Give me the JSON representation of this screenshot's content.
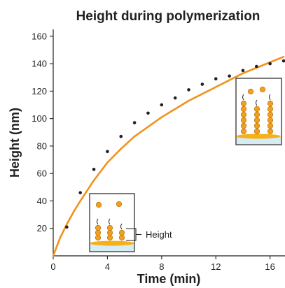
{
  "chart_data": {
    "type": "line",
    "title": "Height during polymerization",
    "xlabel": "Time (min)",
    "ylabel": "Height (nm)",
    "xlim": [
      0,
      17
    ],
    "ylim": [
      0,
      165
    ],
    "x_ticks": [
      0,
      4,
      8,
      12,
      16
    ],
    "y_ticks": [
      20,
      40,
      60,
      80,
      100,
      120,
      140,
      160
    ],
    "grid": false,
    "legend": "none",
    "series": [
      {
        "kind": "scatter",
        "color": "#231f20",
        "points": [
          [
            1,
            21
          ],
          [
            2,
            46
          ],
          [
            3,
            63
          ],
          [
            4,
            76
          ],
          [
            5,
            87
          ],
          [
            6,
            97
          ],
          [
            7,
            104
          ],
          [
            8,
            110
          ],
          [
            9,
            115
          ],
          [
            10,
            121
          ],
          [
            11,
            125
          ],
          [
            12,
            129
          ],
          [
            13,
            131
          ],
          [
            14,
            135
          ],
          [
            15,
            138
          ],
          [
            16,
            140
          ],
          [
            17,
            142
          ]
        ]
      },
      {
        "kind": "line",
        "color": "#f0921e",
        "points": [
          [
            0,
            0
          ],
          [
            0.5,
            13
          ],
          [
            1,
            23
          ],
          [
            1.5,
            32
          ],
          [
            2,
            40
          ],
          [
            3,
            55
          ],
          [
            4,
            68
          ],
          [
            5,
            78
          ],
          [
            6,
            87
          ],
          [
            7,
            94
          ],
          [
            8,
            101
          ],
          [
            9,
            107
          ],
          [
            10,
            113
          ],
          [
            11,
            118
          ],
          [
            12,
            123
          ],
          [
            13,
            128
          ],
          [
            14,
            133
          ],
          [
            15,
            137
          ],
          [
            16,
            141
          ],
          [
            17,
            145
          ]
        ]
      }
    ],
    "annotation": {
      "height_label": "Height"
    }
  },
  "colors": {
    "fit_line": "#f0921e",
    "points": "#231f20",
    "bead": "#f0a020",
    "substrate": "#f5b01a",
    "substrate_base": "#d6ecf3"
  }
}
